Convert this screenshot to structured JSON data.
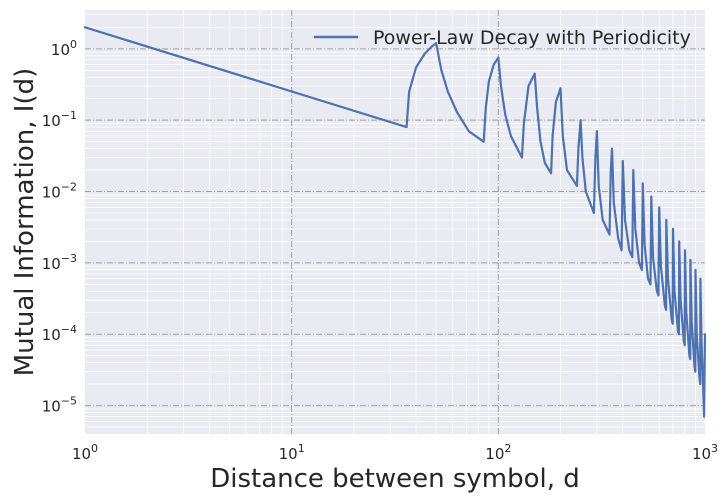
{
  "chart_data": {
    "type": "line",
    "xscale": "log",
    "yscale": "log",
    "xlim": [
      1,
      1000
    ],
    "ylim": [
      4e-06,
      3.5
    ],
    "xlabel": "Distance between symbol, d",
    "ylabel": "Mutual Information, I(d)",
    "xticks": [
      {
        "value": 1,
        "base": "10",
        "exp": "0"
      },
      {
        "value": 10,
        "base": "10",
        "exp": "1"
      },
      {
        "value": 100,
        "base": "10",
        "exp": "2"
      },
      {
        "value": 1000,
        "base": "10",
        "exp": "3"
      }
    ],
    "yticks": [
      {
        "value": 1,
        "base": "10",
        "exp": "0"
      },
      {
        "value": 0.1,
        "base": "10",
        "exp": "−1"
      },
      {
        "value": 0.01,
        "base": "10",
        "exp": "−2"
      },
      {
        "value": 0.001,
        "base": "10",
        "exp": "−3"
      },
      {
        "value": 0.0001,
        "base": "10",
        "exp": "−4"
      },
      {
        "value": 1e-05,
        "base": "10",
        "exp": "−5"
      }
    ],
    "grid": true,
    "legend_position": "top-right",
    "series": [
      {
        "name": "Power-Law Decay with Periodicity",
        "color": "#4c72b0",
        "points": [
          [
            1,
            2.0
          ],
          [
            36,
            0.08
          ],
          [
            37,
            0.25
          ],
          [
            40,
            0.55
          ],
          [
            44,
            0.85
          ],
          [
            48,
            1.1
          ],
          [
            50,
            1.2
          ],
          [
            53,
            0.5
          ],
          [
            57,
            0.25
          ],
          [
            63,
            0.13
          ],
          [
            72,
            0.07
          ],
          [
            85,
            0.05
          ],
          [
            87,
            0.15
          ],
          [
            90,
            0.35
          ],
          [
            95,
            0.6
          ],
          [
            100,
            0.75
          ],
          [
            103,
            0.3
          ],
          [
            108,
            0.12
          ],
          [
            115,
            0.06
          ],
          [
            130,
            0.03
          ],
          [
            133,
            0.09
          ],
          [
            140,
            0.3
          ],
          [
            150,
            0.45
          ],
          [
            154,
            0.15
          ],
          [
            160,
            0.05
          ],
          [
            168,
            0.025
          ],
          [
            180,
            0.018
          ],
          [
            183,
            0.06
          ],
          [
            190,
            0.18
          ],
          [
            200,
            0.28
          ],
          [
            205,
            0.06
          ],
          [
            215,
            0.02
          ],
          [
            240,
            0.012
          ],
          [
            244,
            0.04
          ],
          [
            250,
            0.1
          ],
          [
            255,
            0.03
          ],
          [
            265,
            0.01
          ],
          [
            290,
            0.005
          ],
          [
            295,
            0.03
          ],
          [
            300,
            0.07
          ],
          [
            306,
            0.012
          ],
          [
            320,
            0.004
          ],
          [
            345,
            0.0025
          ],
          [
            350,
            0.02
          ],
          [
            355,
            0.04
          ],
          [
            362,
            0.007
          ],
          [
            380,
            0.0022
          ],
          [
            395,
            0.0015
          ],
          [
            400,
            0.027
          ],
          [
            410,
            0.004
          ],
          [
            430,
            0.0015
          ],
          [
            445,
            0.0012
          ],
          [
            450,
            0.02
          ],
          [
            460,
            0.003
          ],
          [
            480,
            0.001
          ],
          [
            495,
            0.0008
          ],
          [
            500,
            0.013
          ],
          [
            510,
            0.0018
          ],
          [
            530,
            0.0006
          ],
          [
            545,
            0.0005
          ],
          [
            550,
            0.0085
          ],
          [
            560,
            0.0012
          ],
          [
            585,
            0.0004
          ],
          [
            595,
            0.00035
          ],
          [
            600,
            0.006
          ],
          [
            612,
            0.0009
          ],
          [
            640,
            0.00025
          ],
          [
            648,
            0.00022
          ],
          [
            650,
            0.004
          ],
          [
            662,
            0.0006
          ],
          [
            690,
            0.00016
          ],
          [
            698,
            0.00014
          ],
          [
            700,
            0.003
          ],
          [
            712,
            0.0004
          ],
          [
            740,
            0.00011
          ],
          [
            748,
            0.0001
          ],
          [
            750,
            0.002
          ],
          [
            762,
            0.0003
          ],
          [
            790,
            8e-05
          ],
          [
            798,
            7e-05
          ],
          [
            800,
            0.0015
          ],
          [
            812,
            0.0002
          ],
          [
            840,
            5e-05
          ],
          [
            848,
            4.5e-05
          ],
          [
            850,
            0.0011
          ],
          [
            862,
            0.00015
          ],
          [
            890,
            3.5e-05
          ],
          [
            898,
            3e-05
          ],
          [
            900,
            0.0008
          ],
          [
            912,
            0.0001
          ],
          [
            940,
            2.5e-05
          ],
          [
            948,
            2e-05
          ],
          [
            950,
            0.0006
          ],
          [
            962,
            8e-05
          ],
          [
            985,
            1.2e-05
          ],
          [
            990,
            7e-06
          ],
          [
            1000,
            0.0001
          ]
        ]
      }
    ]
  }
}
